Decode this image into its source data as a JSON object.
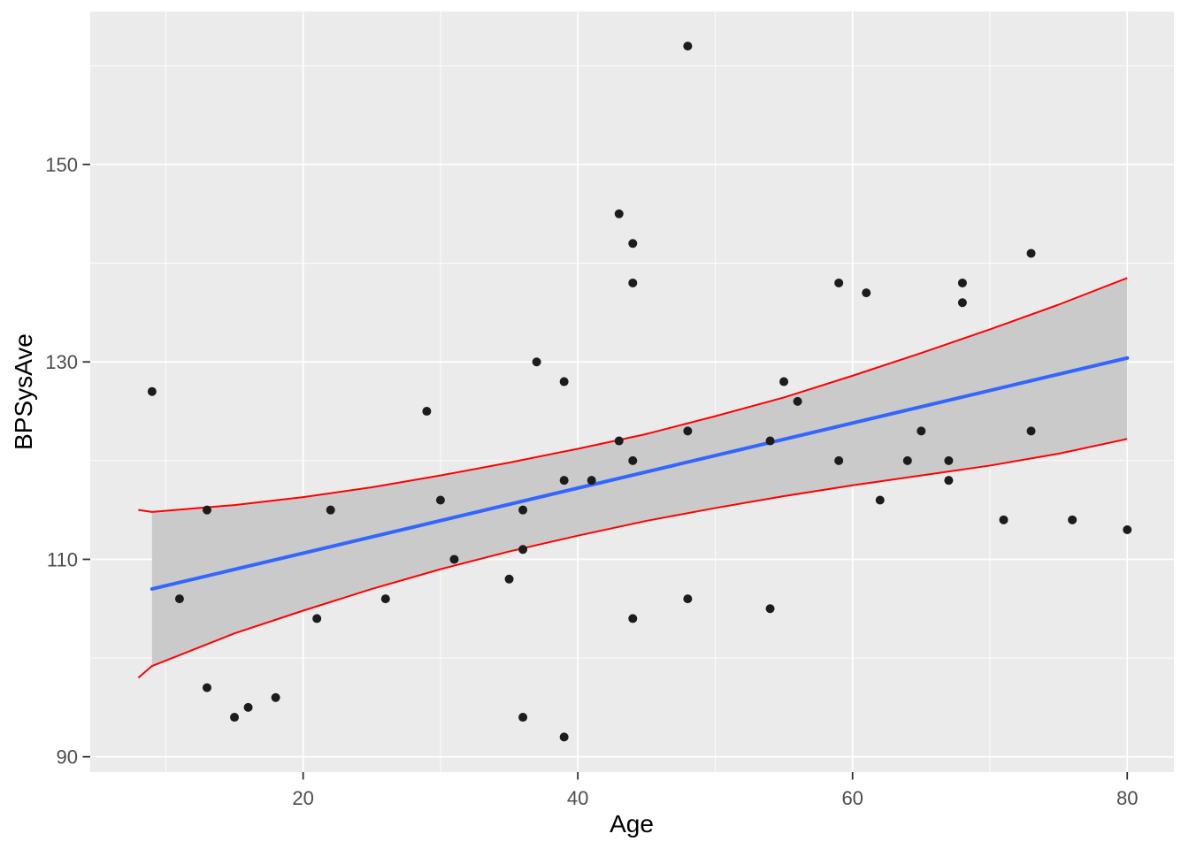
{
  "figure": {
    "background": "#FFFFFF"
  },
  "chart_data": {
    "type": "scatter",
    "title": "",
    "xlabel": "Age",
    "ylabel": "BPSysAve",
    "xlim": [
      4.5,
      83.4
    ],
    "ylim": [
      88.45,
      165.5
    ],
    "x_ticks": [
      20,
      40,
      60,
      80
    ],
    "y_ticks": [
      90,
      110,
      130,
      150
    ],
    "x_minor_ticks": [
      10,
      30,
      50,
      70
    ],
    "y_minor_ticks": [
      100,
      120,
      140,
      160
    ],
    "grid": true,
    "legend_position": "none",
    "panel_background": "#EBEBEB",
    "grid_color": "#FFFFFF",
    "point_color": "#1C1C1C",
    "point_radius": 5,
    "axis_text_color": "#4D4D4D",
    "tick_mark_color": "#333333",
    "points": [
      [
        9,
        127
      ],
      [
        11,
        106
      ],
      [
        13,
        115
      ],
      [
        13,
        97
      ],
      [
        15,
        94
      ],
      [
        16,
        95
      ],
      [
        18,
        96
      ],
      [
        21,
        104
      ],
      [
        22,
        115
      ],
      [
        26,
        106
      ],
      [
        29,
        125
      ],
      [
        30,
        116
      ],
      [
        31,
        110
      ],
      [
        35,
        108
      ],
      [
        36,
        115
      ],
      [
        36,
        111
      ],
      [
        36,
        94
      ],
      [
        37,
        130
      ],
      [
        39,
        128
      ],
      [
        39,
        118
      ],
      [
        39,
        92
      ],
      [
        41,
        118
      ],
      [
        43,
        145
      ],
      [
        43,
        122
      ],
      [
        44,
        142
      ],
      [
        44,
        138
      ],
      [
        44,
        120
      ],
      [
        44,
        104
      ],
      [
        48,
        162
      ],
      [
        48,
        123
      ],
      [
        48,
        106
      ],
      [
        54,
        122
      ],
      [
        54,
        105
      ],
      [
        55,
        128
      ],
      [
        56,
        126
      ],
      [
        59,
        138
      ],
      [
        59,
        120
      ],
      [
        61,
        137
      ],
      [
        62,
        116
      ],
      [
        64,
        120
      ],
      [
        65,
        123
      ],
      [
        67,
        120
      ],
      [
        67,
        118
      ],
      [
        68,
        138
      ],
      [
        68,
        136
      ],
      [
        71,
        114
      ],
      [
        73,
        141
      ],
      [
        73,
        123
      ],
      [
        76,
        114
      ],
      [
        80,
        113
      ]
    ],
    "regression_line": {
      "name": "linear-fit",
      "color": "#3366FF",
      "width": 4,
      "x": [
        9,
        80
      ],
      "y": [
        107.0,
        130.4
      ]
    },
    "ci_band": {
      "name": "confidence-ribbon",
      "fill": "#CACACA",
      "ages": [
        9,
        15,
        20,
        25,
        30,
        35,
        40,
        45,
        50,
        55,
        60,
        65,
        70,
        75,
        80
      ],
      "lower": [
        99.2,
        102.5,
        104.8,
        107.0,
        109.0,
        110.8,
        112.4,
        113.9,
        115.2,
        116.4,
        117.5,
        118.5,
        119.5,
        120.7,
        122.2
      ],
      "upper": [
        114.8,
        115.5,
        116.3,
        117.3,
        118.5,
        119.8,
        121.2,
        122.7,
        124.5,
        126.4,
        128.6,
        130.9,
        133.3,
        135.8,
        138.5
      ]
    },
    "interval_lines": {
      "name": "confidence-limit-lines",
      "color": "#FF0000",
      "width": 2,
      "ages": [
        8,
        9,
        15,
        20,
        25,
        30,
        35,
        40,
        45,
        50,
        55,
        60,
        65,
        70,
        75,
        80
      ],
      "lower": [
        98.0,
        99.2,
        102.5,
        104.8,
        107.0,
        109.0,
        110.8,
        112.4,
        113.9,
        115.2,
        116.4,
        117.5,
        118.5,
        119.5,
        120.7,
        122.2
      ],
      "upper": [
        115.0,
        114.8,
        115.5,
        116.3,
        117.3,
        118.5,
        119.8,
        121.2,
        122.7,
        124.5,
        126.4,
        128.6,
        130.9,
        133.3,
        135.8,
        138.5
      ]
    }
  }
}
